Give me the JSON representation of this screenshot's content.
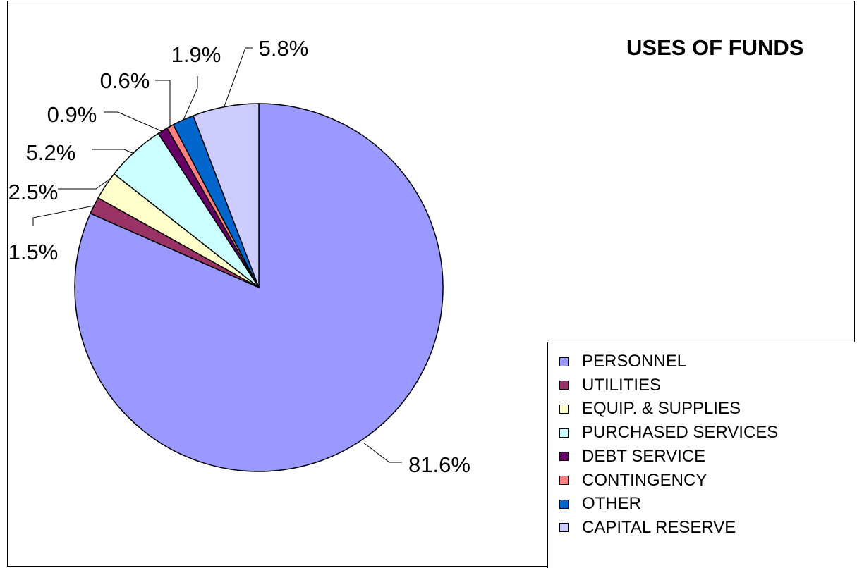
{
  "chart_data": {
    "type": "pie",
    "title": "USES OF FUNDS",
    "categories": [
      "PERSONNEL",
      "UTILITIES",
      "EQUIP. & SUPPLIES",
      "PURCHASED SERVICES",
      "DEBT SERVICE",
      "CONTINGENCY",
      "OTHER",
      "CAPITAL RESERVE"
    ],
    "values": [
      81.6,
      1.5,
      2.5,
      5.2,
      0.9,
      0.6,
      1.9,
      5.8
    ],
    "value_labels": [
      "81.6%",
      "1.5%",
      "2.5%",
      "5.2%",
      "0.9%",
      "0.6%",
      "1.9%",
      "5.8%"
    ],
    "colors": [
      "#9999FF",
      "#993366",
      "#FFFFCC",
      "#CCFFFF",
      "#660066",
      "#FF8080",
      "#0066CC",
      "#CCCCFF"
    ],
    "legend_position": "bottom-right"
  }
}
